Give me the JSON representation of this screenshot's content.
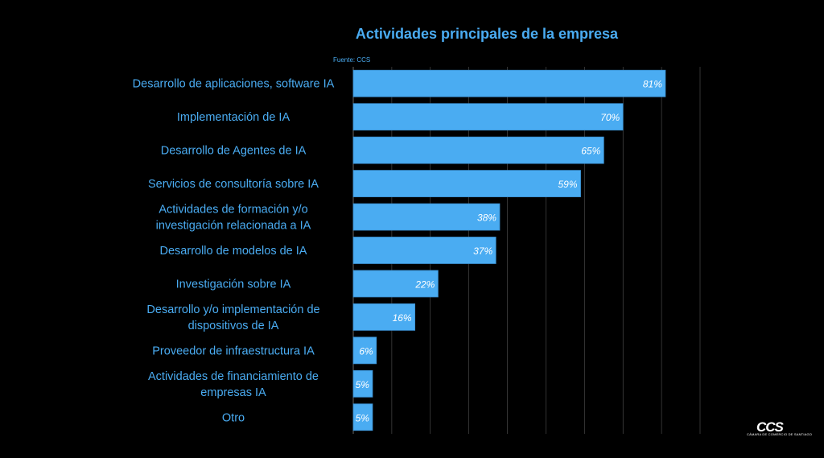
{
  "chart_data": {
    "type": "bar",
    "orientation": "horizontal",
    "title": "Actividades principales de la empresa",
    "source": "Fuente: CCS",
    "categories": [
      [
        "Desarrollo de aplicaciones, software IA"
      ],
      [
        "Implementación de IA"
      ],
      [
        "Desarrollo de Agentes de IA"
      ],
      [
        "Servicios de consultoría sobre IA"
      ],
      [
        "Actividades de formación y/o",
        "investigación relacionada a IA"
      ],
      [
        "Desarrollo de modelos de IA"
      ],
      [
        "Investigación sobre IA"
      ],
      [
        "Desarrollo y/o implementación de",
        "dispositivos de IA"
      ],
      [
        "Proveedor de infraestructura IA"
      ],
      [
        "Actividades de financiamiento de",
        "empresas IA"
      ],
      [
        "Otro"
      ]
    ],
    "values": [
      81,
      70,
      65,
      59,
      38,
      37,
      22,
      16,
      6,
      5,
      5
    ],
    "labels": [
      "81%",
      "70%",
      "65%",
      "59%",
      "38%",
      "37%",
      "22%",
      "16%",
      "6%",
      "5%",
      "5%"
    ],
    "xlim": [
      0,
      90
    ],
    "grid": true,
    "legend": "none",
    "colors": {
      "bar": "#4aacf2",
      "bar_edge": "#3a8fd0",
      "text": "#4aacf2",
      "label": "#ffffff",
      "grid": "#555555",
      "background": "#000000"
    }
  },
  "logo": {
    "main": "CCS",
    "sub": "CÁMARA DE COMERCIO DE SANTIAGO"
  }
}
